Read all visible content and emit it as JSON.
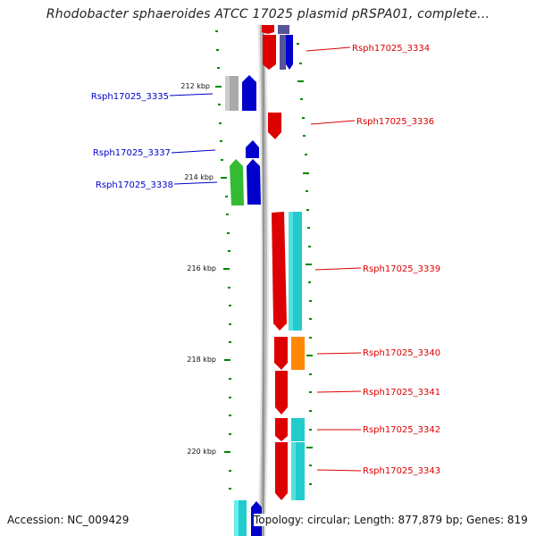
{
  "title": "Rhodobacter sphaeroides ATCC 17025 plasmid pRSPA01, complete...",
  "footer": {
    "accession": "Accession: NC_009429",
    "summary": "Topology: circular; Length: 877,879 bp; Genes: 819"
  },
  "kbp_ticks": [
    {
      "label": "212 kbp",
      "kbp": 212
    },
    {
      "label": "214 kbp",
      "kbp": 214
    },
    {
      "label": "216 kbp",
      "kbp": 216
    },
    {
      "label": "218 kbp",
      "kbp": 218
    },
    {
      "label": "220 kbp",
      "kbp": 220
    }
  ],
  "genes": [
    {
      "name": "Rsph17025_3334",
      "strand": "reverse",
      "color": "#dd0000"
    },
    {
      "name": "Rsph17025_3335",
      "strand": "forward",
      "color": "#0000cc"
    },
    {
      "name": "Rsph17025_3336",
      "strand": "reverse",
      "color": "#dd0000"
    },
    {
      "name": "Rsph17025_3337",
      "strand": "forward",
      "color": "#0000cc"
    },
    {
      "name": "Rsph17025_3338",
      "strand": "forward",
      "color": "#0000cc"
    },
    {
      "name": "Rsph17025_3339",
      "strand": "reverse",
      "color": "#dd0000"
    },
    {
      "name": "Rsph17025_3340",
      "strand": "reverse",
      "color": "#dd0000"
    },
    {
      "name": "Rsph17025_3341",
      "strand": "reverse",
      "color": "#dd0000"
    },
    {
      "name": "Rsph17025_3342",
      "strand": "reverse",
      "color": "#dd0000"
    },
    {
      "name": "Rsph17025_3343",
      "strand": "reverse",
      "color": "#dd0000"
    }
  ],
  "colors": {
    "forward": "#0000cc",
    "reverse": "#dd0000",
    "backbone": "#888888",
    "ticks": "#008800",
    "cog_cyan": "#22cccc",
    "cog_green": "#33bb33",
    "cog_orange": "#ff8800",
    "cog_gray": "#aaaaaa",
    "cog_slate": "#555599"
  }
}
